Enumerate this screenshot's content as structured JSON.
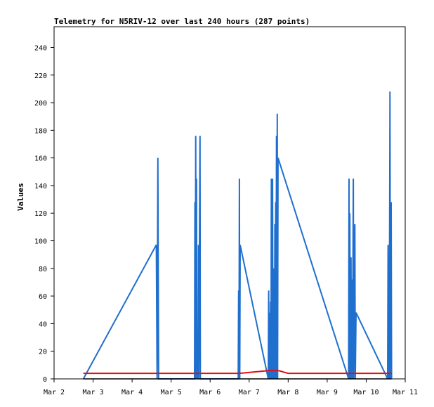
{
  "chart_data": {
    "type": "line",
    "title": "Telemetry for N5RIV-12 over last 240 hours (287 points)",
    "xlabel": "",
    "ylabel": "Values",
    "xlim": [
      "Mar 2",
      "Mar 11"
    ],
    "ylim": [
      0,
      255
    ],
    "yticks": [
      0,
      20,
      40,
      60,
      80,
      100,
      120,
      140,
      160,
      180,
      200,
      220,
      240
    ],
    "xticks": [
      "Mar 2",
      "Mar 3",
      "Mar 4",
      "Mar 5",
      "Mar 6",
      "Mar 7",
      "Mar 8",
      "Mar 9",
      "Mar 10",
      "Mar 11"
    ],
    "grid": false,
    "colors": {
      "blue": "#1f6fcf",
      "red": "#e01010",
      "black": "#000000"
    },
    "series": [
      {
        "color": "blue",
        "points": [
          [
            0.75,
            0
          ],
          [
            2.62,
            97
          ],
          [
            2.64,
            0
          ],
          [
            2.66,
            160
          ],
          [
            2.68,
            0
          ],
          [
            3.6,
            0
          ],
          [
            3.61,
            128
          ],
          [
            3.62,
            0
          ],
          [
            3.63,
            176
          ],
          [
            3.64,
            0
          ],
          [
            3.65,
            145
          ],
          [
            3.66,
            0
          ],
          [
            3.68,
            27
          ],
          [
            3.69,
            0
          ],
          [
            3.7,
            97
          ],
          [
            3.71,
            0
          ],
          [
            3.74,
            176
          ],
          [
            3.75,
            0
          ],
          [
            4.72,
            0
          ],
          [
            4.73,
            64
          ],
          [
            4.74,
            0
          ],
          [
            4.75,
            145
          ],
          [
            4.76,
            0
          ],
          [
            4.77,
            97
          ],
          [
            5.49,
            0
          ],
          [
            5.5,
            64
          ],
          [
            5.51,
            0
          ],
          [
            5.53,
            48
          ],
          [
            5.54,
            0
          ],
          [
            5.55,
            56
          ],
          [
            5.56,
            0
          ],
          [
            5.57,
            145
          ],
          [
            5.58,
            0
          ],
          [
            5.6,
            145
          ],
          [
            5.61,
            0
          ],
          [
            5.62,
            80
          ],
          [
            5.63,
            0
          ],
          [
            5.64,
            64
          ],
          [
            5.65,
            0
          ],
          [
            5.66,
            112
          ],
          [
            5.67,
            0
          ],
          [
            5.68,
            128
          ],
          [
            5.69,
            0
          ],
          [
            5.7,
            176
          ],
          [
            5.71,
            0
          ],
          [
            5.72,
            192
          ],
          [
            5.73,
            0
          ],
          [
            5.74,
            160
          ],
          [
            7.55,
            0
          ],
          [
            7.56,
            145
          ],
          [
            7.57,
            0
          ],
          [
            7.58,
            120
          ],
          [
            7.59,
            0
          ],
          [
            7.61,
            88
          ],
          [
            7.62,
            0
          ],
          [
            7.64,
            72
          ],
          [
            7.65,
            0
          ],
          [
            7.67,
            145
          ],
          [
            7.68,
            0
          ],
          [
            7.71,
            112
          ],
          [
            7.72,
            0
          ],
          [
            7.74,
            48
          ],
          [
            8.55,
            0
          ],
          [
            8.56,
            97
          ],
          [
            8.57,
            0
          ],
          [
            8.58,
            27
          ],
          [
            8.59,
            0
          ],
          [
            8.61,
            208
          ],
          [
            8.62,
            0
          ],
          [
            8.64,
            128
          ],
          [
            8.65,
            0
          ]
        ]
      },
      {
        "color": "red",
        "points": [
          [
            0.75,
            4
          ],
          [
            4.75,
            4
          ],
          [
            5.5,
            6
          ],
          [
            5.75,
            6
          ],
          [
            6.0,
            4
          ],
          [
            8.65,
            4
          ]
        ]
      },
      {
        "color": "black",
        "points": [
          [
            0.75,
            0
          ],
          [
            8.65,
            0
          ]
        ]
      }
    ]
  }
}
